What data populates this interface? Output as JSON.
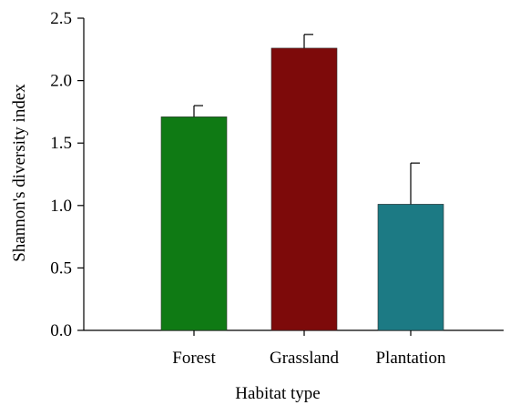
{
  "chart_data": {
    "type": "bar",
    "title": "",
    "xlabel": "Habitat type",
    "ylabel": "Shannon's diversity index",
    "categories": [
      "Forest",
      "Grassland",
      "Plantation"
    ],
    "values": [
      1.71,
      2.26,
      1.01
    ],
    "error_upper": [
      0.09,
      0.11,
      0.33
    ],
    "colors": [
      "#0f7a14",
      "#7d0a0a",
      "#1c7a84"
    ],
    "ylim": [
      0,
      2.5
    ],
    "yticks": [
      0.0,
      0.5,
      1.0,
      1.5,
      2.0,
      2.5
    ],
    "ytick_labels": [
      "0.0",
      "0.5",
      "1.0",
      "1.5",
      "2.0",
      "2.5"
    ],
    "grid": false,
    "legend": "none"
  }
}
